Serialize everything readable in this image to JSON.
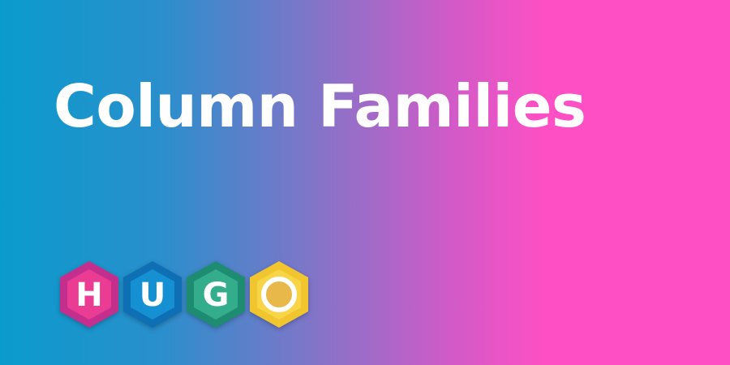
{
  "title": "Column Families",
  "logo": {
    "letters": [
      "H",
      "U",
      "G",
      "O"
    ],
    "colors": {
      "h_outer": "#c42f8e",
      "h_inner": "#ea3c93",
      "u_outer": "#0f6fb4",
      "u_inner": "#1590d3",
      "g_outer": "#1d8c70",
      "g_inner": "#33ad8c",
      "o_outer": "#f0c52e",
      "o_inner": "#f7d547",
      "o_ring": "#e8b94a"
    }
  }
}
